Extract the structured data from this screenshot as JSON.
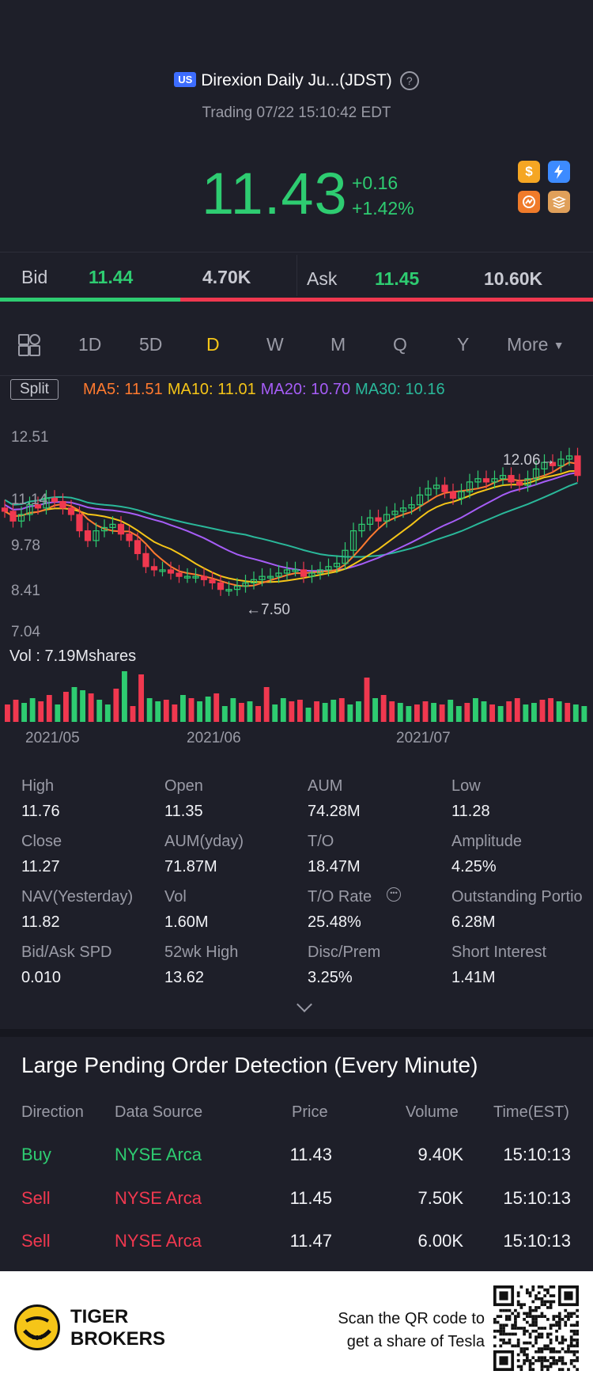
{
  "header": {
    "market_badge": "US",
    "title": "Direxion Daily Ju...(JDST)",
    "trading_status": "Trading 07/22 15:10:42 EDT",
    "price": "11.43",
    "change": "+0.16",
    "change_pct": "+1.42%",
    "icons": [
      "dollar-icon",
      "lightning-icon",
      "options-icon",
      "stack-icon"
    ]
  },
  "quote": {
    "bid_label": "Bid",
    "bid_price": "11.44",
    "bid_size": "4.70K",
    "ask_label": "Ask",
    "ask_price": "11.45",
    "ask_size": "10.60K",
    "bid_ratio": 0.304
  },
  "tabs": {
    "items": [
      "1D",
      "5D",
      "D",
      "W",
      "M",
      "Q",
      "Y"
    ],
    "active": "D",
    "more_label": "More"
  },
  "chart": {
    "split_label": "Split",
    "ma": {
      "ma5": "MA5: 11.51",
      "ma10": "MA10: 11.01",
      "ma20": "MA20: 10.70",
      "ma30": "MA30: 10.16"
    },
    "y_ticks": [
      "12.51",
      "11.14",
      "9.78",
      "8.41",
      "7.04"
    ],
    "high_marker": "12.06",
    "low_marker": "7.50",
    "vol_label": "Vol  : 7.19Mshares",
    "x_labels": [
      "2021/05",
      "2021/06",
      "2021/07"
    ],
    "colors": {
      "up": "#2ecc71",
      "down": "#f0384f",
      "ma5": "#ff7a2f",
      "ma10": "#f5c518",
      "ma20": "#a65df7",
      "ma30": "#2ab89a"
    }
  },
  "stats": [
    {
      "label": "High",
      "value": "11.76"
    },
    {
      "label": "Open",
      "value": "11.35"
    },
    {
      "label": "AUM",
      "value": "74.28M"
    },
    {
      "label": "Low",
      "value": "11.28"
    },
    {
      "label": "Close",
      "value": "11.27"
    },
    {
      "label": "AUM(yday)",
      "value": "71.87M"
    },
    {
      "label": "T/O",
      "value": "18.47M"
    },
    {
      "label": "Amplitude",
      "value": "4.25%"
    },
    {
      "label": "NAV(Yesterday)",
      "value": "11.82"
    },
    {
      "label": "Vol",
      "value": "1.60M"
    },
    {
      "label": "T/O Rate",
      "value": "25.48%"
    },
    {
      "label": "Outstanding Portio",
      "value": "6.28M"
    },
    {
      "label": "Bid/Ask SPD",
      "value": "0.010"
    },
    {
      "label": "52wk High",
      "value": "13.62"
    },
    {
      "label": "Disc/Prem",
      "value": "3.25%"
    },
    {
      "label": "Short Interest",
      "value": "1.41M"
    }
  ],
  "pending_orders": {
    "title": "Large Pending Order Detection (Every Minute)",
    "headers": [
      "Direction",
      "Data Source",
      "Price",
      "Volume",
      "Time(EST)"
    ],
    "rows": [
      {
        "direction": "Buy",
        "source": "NYSE Arca",
        "price": "11.43",
        "volume": "9.40K",
        "time": "15:10:13"
      },
      {
        "direction": "Sell",
        "source": "NYSE Arca",
        "price": "11.45",
        "volume": "7.50K",
        "time": "15:10:13"
      },
      {
        "direction": "Sell",
        "source": "NYSE Arca",
        "price": "11.47",
        "volume": "6.00K",
        "time": "15:10:13"
      }
    ]
  },
  "footer": {
    "brand_line1": "TIGER",
    "brand_line2": "BROKERS",
    "scan_line1": "Scan the QR code to",
    "scan_line2": "get a share of Tesla"
  }
}
